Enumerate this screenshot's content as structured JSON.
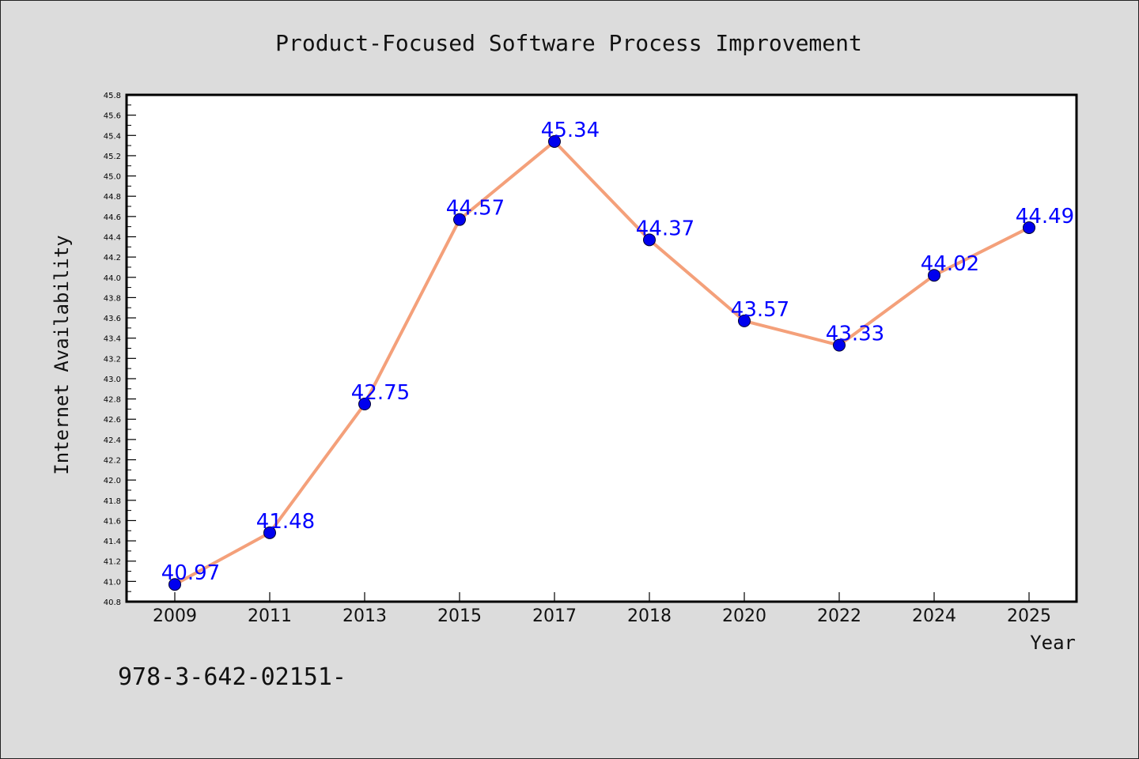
{
  "chart_data": {
    "type": "line",
    "title": "Product-Focused Software Process Improvement",
    "xlabel": "Year",
    "ylabel": "Internet Availability",
    "categories": [
      "2009",
      "2011",
      "2013",
      "2015",
      "2017",
      "2018",
      "2020",
      "2022",
      "2024",
      "2025"
    ],
    "values": [
      40.97,
      41.48,
      42.75,
      44.57,
      45.34,
      44.37,
      43.57,
      43.33,
      44.02,
      44.49
    ],
    "data_labels": [
      "40.97",
      "41.48",
      "42.75",
      "44.57",
      "45.34",
      "44.37",
      "43.57",
      "43.33",
      "44.02",
      "44.49"
    ],
    "ylim": [
      40.8,
      45.8
    ],
    "yticks": [
      "40.8",
      "41.0",
      "41.2",
      "41.4",
      "41.6",
      "41.8",
      "42.0",
      "42.2",
      "42.4",
      "42.6",
      "42.8",
      "43.0",
      "43.2",
      "43.4",
      "43.6",
      "43.8",
      "44.0",
      "44.2",
      "44.4",
      "44.6",
      "44.8",
      "45.0",
      "45.2",
      "45.4",
      "45.6",
      "45.8"
    ],
    "grid": false,
    "legend": "none",
    "colors": {
      "line": "#f4a07a",
      "marker": "#0000ee",
      "label": "#0000ff",
      "plot_bg": "#ffffff",
      "page_bg": "#dcdcdc"
    }
  },
  "footer_text": "978-3-642-02151-"
}
